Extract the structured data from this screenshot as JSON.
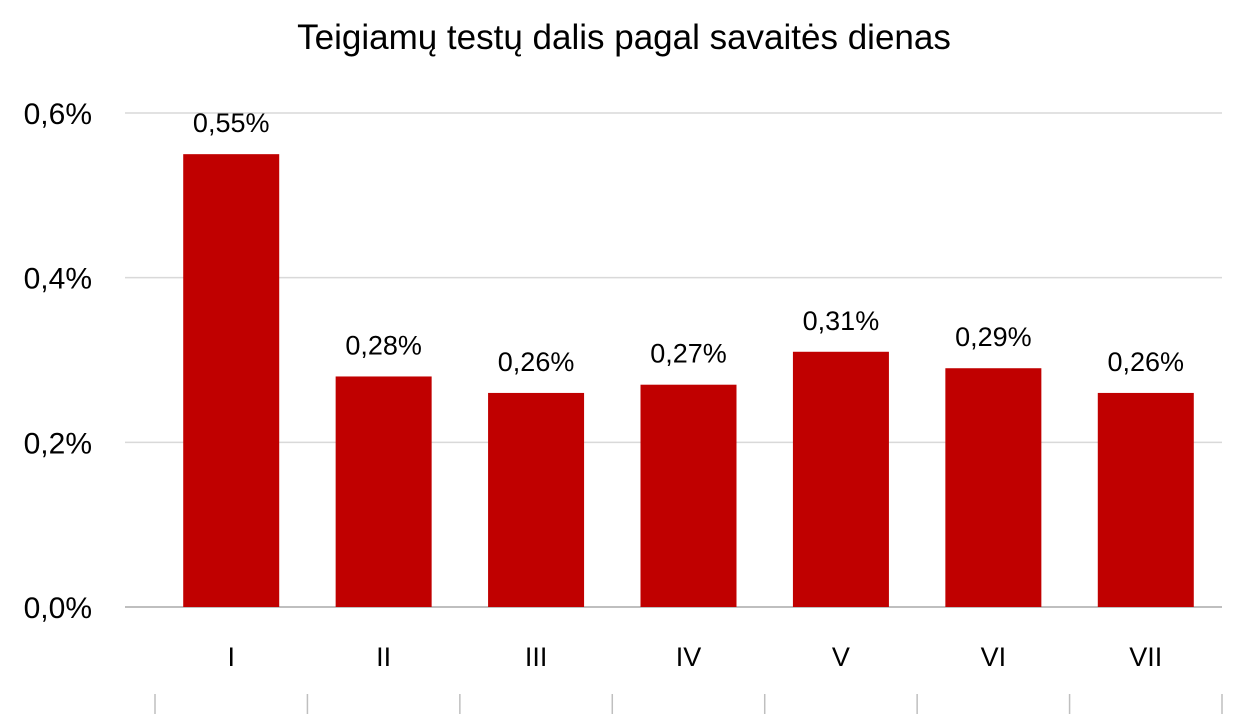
{
  "chart_data": {
    "type": "bar",
    "title": "Teigiamų testų dalis pagal savaitės dienas",
    "categories": [
      "I",
      "II",
      "III",
      "IV",
      "V",
      "VI",
      "VII"
    ],
    "values": [
      0.55,
      0.28,
      0.26,
      0.27,
      0.31,
      0.29,
      0.26
    ],
    "data_labels": [
      "0,55%",
      "0,28%",
      "0,26%",
      "0,27%",
      "0,31%",
      "0,29%",
      "0,26%"
    ],
    "y_ticks": [
      0,
      0.2,
      0.4,
      0.6
    ],
    "y_tick_labels": [
      "0,0%",
      "0,2%",
      "0,4%",
      "0,6%"
    ],
    "ylim": [
      0,
      0.6
    ],
    "grid": true,
    "legend": "none",
    "bar_color": "#c00000"
  }
}
